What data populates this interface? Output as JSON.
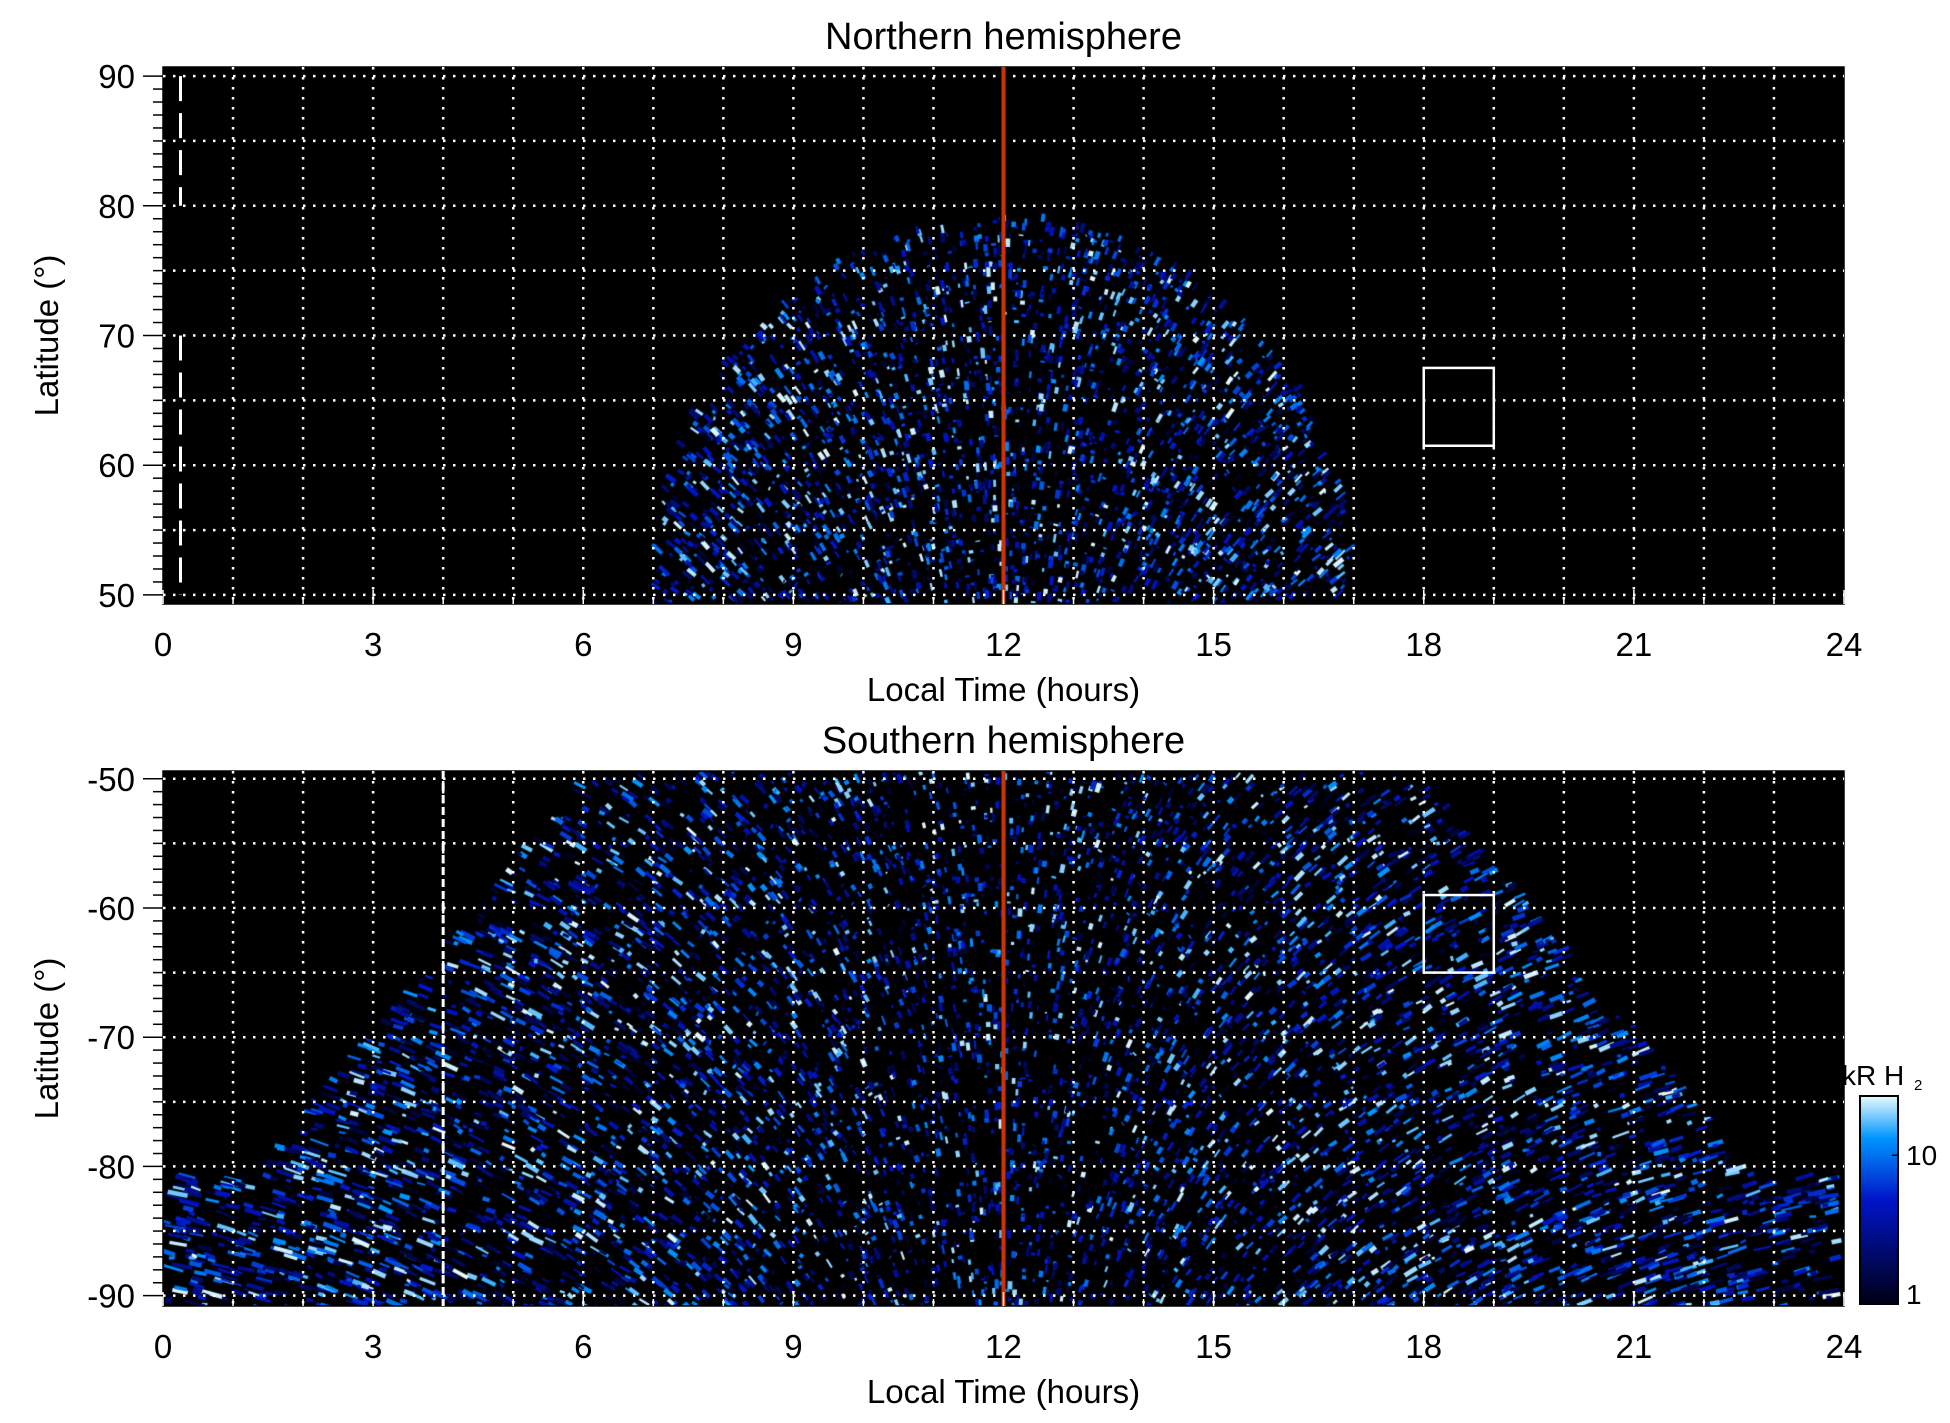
{
  "chart_data": [
    {
      "type": "heatmap",
      "title": "Northern hemisphere",
      "xlabel": "Local Time (hours)",
      "ylabel": "Latitude (°)",
      "xlim": [
        0,
        24
      ],
      "ylim": [
        49.3,
        90.7
      ],
      "xticks": [
        "0",
        "3",
        "6",
        "9",
        "12",
        "15",
        "18",
        "21",
        "24"
      ],
      "yticks": [
        "50",
        "60",
        "70",
        "80",
        "90"
      ],
      "ytick_values": [
        50,
        60,
        70,
        80,
        90
      ],
      "grid": true,
      "noon_line_lt": 12,
      "dashed_line_lt": 0.25,
      "dashed_segments": [
        [
          80,
          90
        ],
        [
          50,
          70
        ]
      ],
      "box": {
        "lt": [
          18,
          19
        ],
        "lat": [
          61.5,
          67.5
        ]
      },
      "emission_region": {
        "lt_span_at_base": [
          7,
          17
        ],
        "max_lat_at_noon": 79
      }
    },
    {
      "type": "heatmap",
      "title": "Southern hemisphere",
      "xlabel": "Local Time (hours)",
      "ylabel": "Latitude (°)",
      "xlim": [
        0,
        24
      ],
      "ylim": [
        -90.8,
        -49.4
      ],
      "xticks": [
        "0",
        "3",
        "6",
        "9",
        "12",
        "15",
        "18",
        "21",
        "24"
      ],
      "yticks": [
        "-50",
        "-60",
        "-70",
        "-80",
        "-90"
      ],
      "ytick_values": [
        -50,
        -60,
        -70,
        -80,
        -90
      ],
      "grid": true,
      "noon_line_lt": 12,
      "dashed_line_lt": 4,
      "dashed_segments": [
        [
          -90.8,
          -49.4
        ]
      ],
      "box": {
        "lt": [
          18,
          19
        ],
        "lat": [
          -65,
          -59
        ]
      },
      "colorbar": {
        "label": "kR H",
        "label_sub": "2",
        "ticks": [
          "1",
          "10"
        ],
        "tick_values": [
          1,
          10
        ],
        "range": [
          1,
          25
        ],
        "scale": "log"
      }
    }
  ],
  "colors": {
    "noon_line": "#cc3300",
    "background": "#000000",
    "grid": "#ffffff"
  }
}
